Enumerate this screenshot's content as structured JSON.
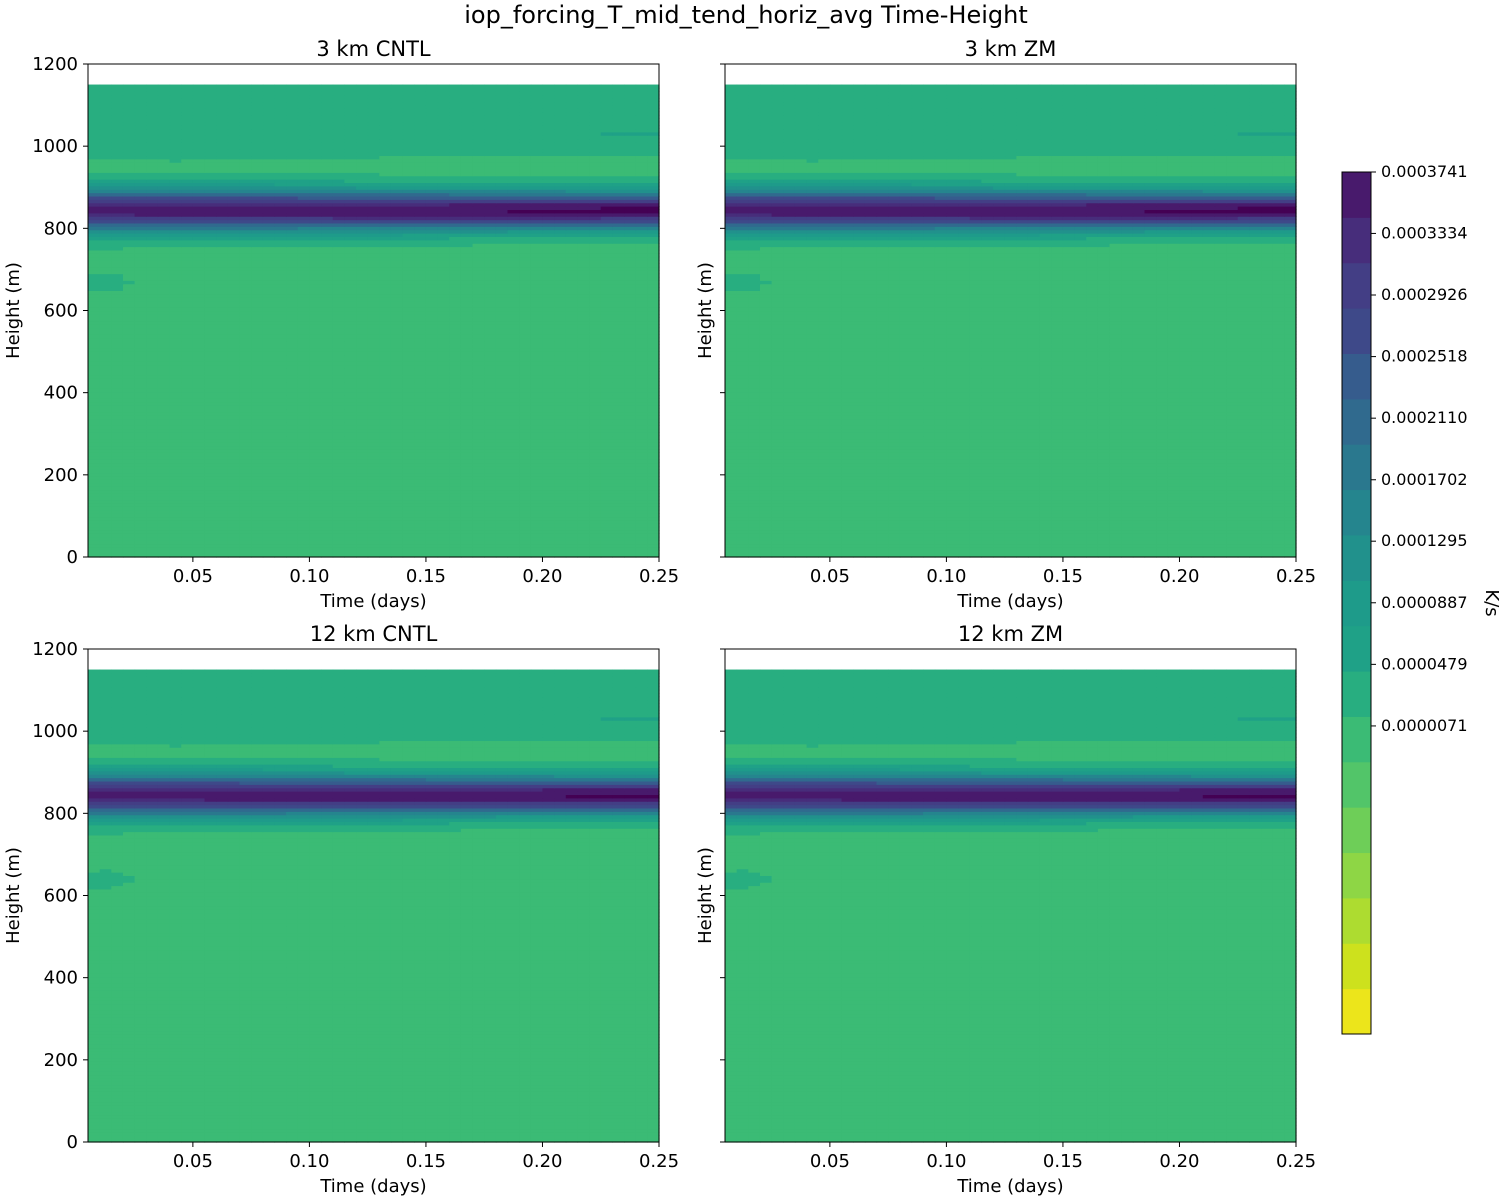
{
  "chart_data": {
    "type": "heatmap",
    "suptitle": "iop_forcing_T_mid_tend_horiz_avg Time-Height",
    "xlabel": "Time (days)",
    "ylabel": "Height (m)",
    "xlim": [
      0.005,
      0.25
    ],
    "ylim": [
      0,
      1200
    ],
    "x_ticks": [
      "0.05",
      "0.10",
      "0.15",
      "0.20",
      "0.25"
    ],
    "y_ticks": [
      "0",
      "200",
      "400",
      "600",
      "800",
      "1000",
      "1200"
    ],
    "data_top_height_m": 1150,
    "colorbar": {
      "label": "K/s",
      "min": -0.000197,
      "max": 0.0003741,
      "levels": 19,
      "tick_values": [
        7.1e-06,
        4.79e-05,
        8.87e-05,
        0.0001295,
        0.0001702,
        0.000211,
        0.0002518,
        0.0002926,
        0.0003334,
        0.0003741
      ],
      "tick_labels": [
        "0.0000071",
        "0.0000479",
        "0.0000887",
        "0.0001295",
        "0.0001702",
        "0.0002110",
        "0.0002518",
        "0.0002926",
        "0.0003334",
        "0.0003741"
      ],
      "colors": [
        "#ece51b",
        "#cde11d",
        "#addc30",
        "#8ed645",
        "#6ece58",
        "#52c569",
        "#3bbb75",
        "#28ae80",
        "#1fa187",
        "#1e9b8a",
        "#21918c",
        "#25858e",
        "#2a788e",
        "#306a8e",
        "#365c8d",
        "#3e4989",
        "#433e85",
        "#472d7b",
        "#481a6c",
        "#440154"
      ]
    },
    "panels": [
      {
        "title": "3 km CNTL",
        "peak_value": 0.000374,
        "peak_height_m": 845,
        "low_blob_height_m": 668
      },
      {
        "title": "3 km ZM",
        "peak_value": 0.000374,
        "peak_height_m": 845,
        "low_blob_height_m": 668
      },
      {
        "title": "12 km CNTL",
        "peak_value": 0.000372,
        "peak_height_m": 845,
        "low_blob_height_m": 640
      },
      {
        "title": "12 km ZM",
        "peak_value": 0.000372,
        "peak_height_m": 845,
        "low_blob_height_m": 640
      }
    ]
  }
}
